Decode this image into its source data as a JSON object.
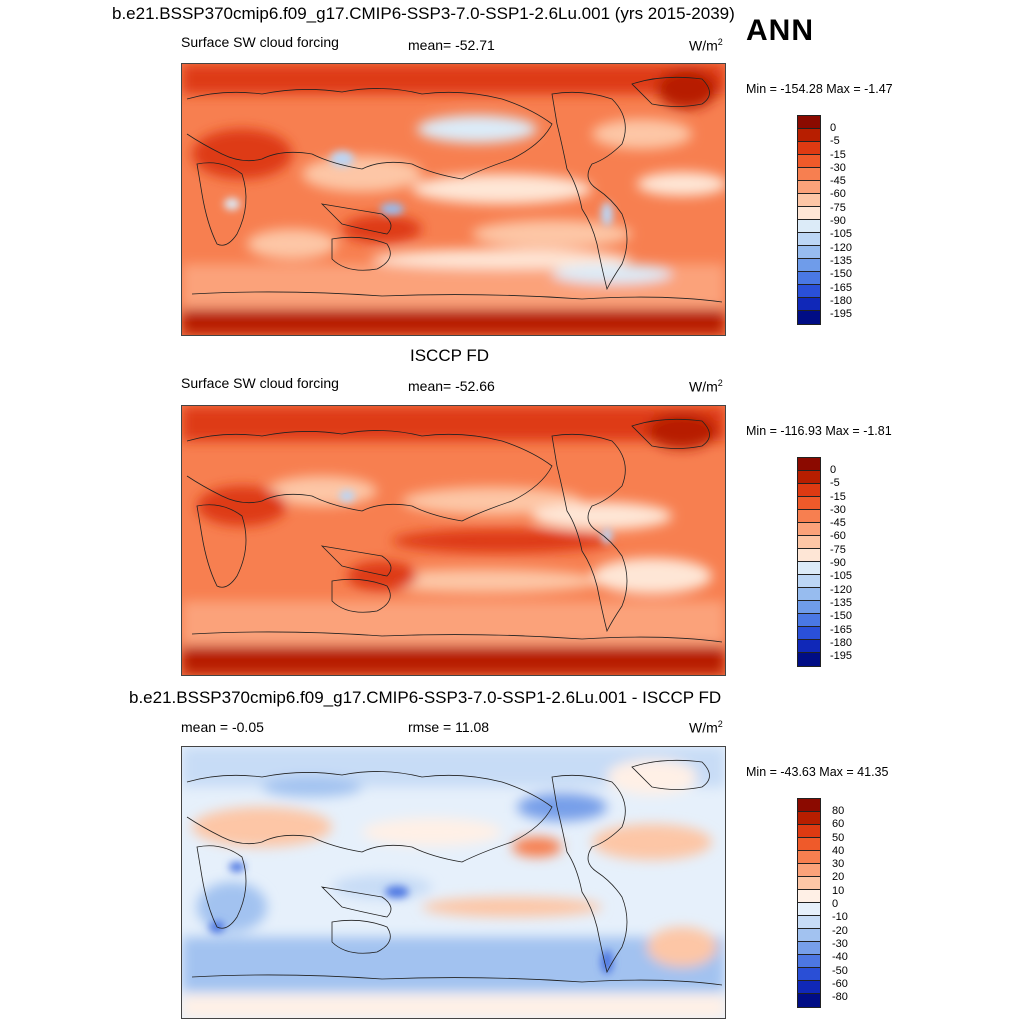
{
  "season": "ANN",
  "panels": [
    {
      "title": "b.e21.BSSP370cmip6.f09_g17.CMIP6-SSP3-7.0-SSP1-2.6Lu.001 (yrs 2015-2039)",
      "left_label": "Surface SW cloud forcing",
      "center_label": "mean= -52.71",
      "units": "W/m",
      "units_sup": "2",
      "minmax": "Min = -154.28 Max =  -1.47",
      "colorbar": {
        "labels": [
          "0",
          "-5",
          "-15",
          "-30",
          "-45",
          "-60",
          "-75",
          "-90",
          "-105",
          "-120",
          "-135",
          "-150",
          "-165",
          "-180",
          "-195"
        ],
        "colors": [
          "#8b0a00",
          "#b71e00",
          "#de3a12",
          "#ef5a2a",
          "#f77f50",
          "#fba27a",
          "#fdc6a6",
          "#fee6d6",
          "#dcebf8",
          "#bcd6f5",
          "#97bcef",
          "#6f9cea",
          "#4a78e4",
          "#2a50d8",
          "#1028b8",
          "#000d85"
        ]
      }
    },
    {
      "title": "ISCCP FD",
      "left_label": "Surface SW cloud forcing",
      "center_label": "mean= -52.66",
      "units": "W/m",
      "units_sup": "2",
      "minmax": "Min = -116.93 Max =  -1.81",
      "colorbar": {
        "labels": [
          "0",
          "-5",
          "-15",
          "-30",
          "-45",
          "-60",
          "-75",
          "-90",
          "-105",
          "-120",
          "-135",
          "-150",
          "-165",
          "-180",
          "-195"
        ],
        "colors": [
          "#8b0a00",
          "#b71e00",
          "#de3a12",
          "#ef5a2a",
          "#f77f50",
          "#fba27a",
          "#fdc6a6",
          "#fee6d6",
          "#dcebf8",
          "#bcd6f5",
          "#97bcef",
          "#6f9cea",
          "#4a78e4",
          "#2a50d8",
          "#1028b8",
          "#000d85"
        ]
      }
    },
    {
      "title": "b.e21.BSSP370cmip6.f09_g17.CMIP6-SSP3-7.0-SSP1-2.6Lu.001 - ISCCP FD",
      "left_label": "mean =  -0.05",
      "center_label": "rmse =  11.08",
      "units": "W/m",
      "units_sup": "2",
      "minmax": "Min = -43.63 Max =  41.35",
      "colorbar": {
        "labels": [
          "80",
          "60",
          "50",
          "40",
          "30",
          "20",
          "10",
          "0",
          "-10",
          "-20",
          "-30",
          "-40",
          "-50",
          "-60",
          "-80"
        ],
        "colors": [
          "#8b0a00",
          "#b71e00",
          "#de3a12",
          "#ef5a2a",
          "#f77f50",
          "#fba27a",
          "#fdc6a6",
          "#fff0e6",
          "#e6f0fb",
          "#c7dcf6",
          "#a2c2f0",
          "#779fe9",
          "#4d77e2",
          "#2a4fd6",
          "#1028b8",
          "#000d85"
        ]
      }
    }
  ]
}
